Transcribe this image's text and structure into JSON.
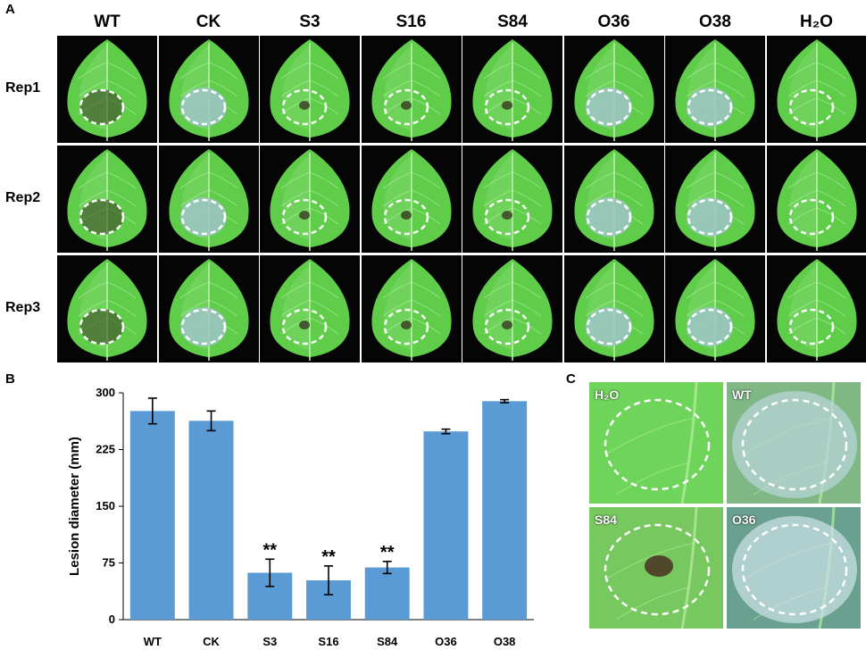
{
  "panel_labels": {
    "a": "A",
    "b": "B",
    "c": "C"
  },
  "panel_a": {
    "columns": [
      "WT",
      "CK",
      "S3",
      "S16",
      "S84",
      "O36",
      "O38",
      "H₂O"
    ],
    "rows": [
      "Rep1",
      "Rep2",
      "Rep3"
    ],
    "colors": {
      "background": "#050505",
      "leaf": "#5fcc4a",
      "leaf_light": "#8fe07a",
      "vein": "#b8f0a8",
      "lesion_ring": "#ffffff",
      "mold": "#9fc4c8",
      "necrosis": "#3a3a22"
    }
  },
  "chart_data": {
    "type": "bar",
    "categories": [
      "WT",
      "CK",
      "S3",
      "S16",
      "S84",
      "O36",
      "O38"
    ],
    "values": [
      276,
      263,
      62,
      52,
      69,
      249,
      289
    ],
    "errors": [
      17,
      13,
      18,
      19,
      8,
      3,
      2
    ],
    "significance": [
      "",
      "",
      "**",
      "**",
      "**",
      "",
      ""
    ],
    "xlabel": "",
    "ylabel": "Lesion diameter (mm)",
    "ylim": [
      0,
      300
    ],
    "yticks": [
      "0",
      "75",
      "150",
      "225",
      "300"
    ],
    "bar_color": "#5b9bd5",
    "grid": false
  },
  "panel_c": {
    "tiles": [
      {
        "label": "H₂O"
      },
      {
        "label": "WT"
      },
      {
        "label": "S84"
      },
      {
        "label": "O36"
      }
    ]
  }
}
